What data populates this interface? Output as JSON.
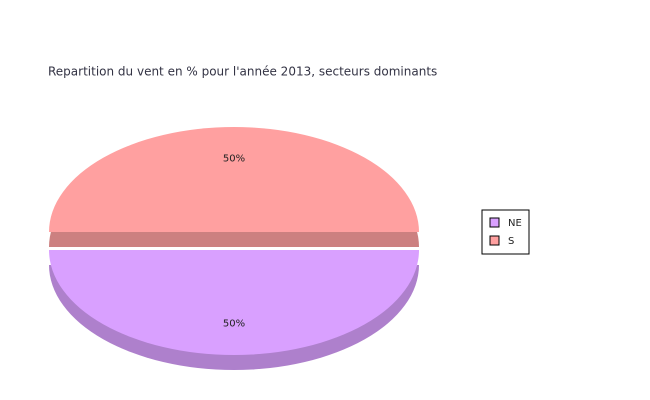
{
  "chart_data": {
    "type": "pie3d",
    "title": "Repartition du vent en % pour l'année 2013, secteurs dominants",
    "categories": [
      "NE",
      "S"
    ],
    "values": [
      50,
      50
    ],
    "value_labels": [
      "50%",
      "50%"
    ],
    "colors": [
      "#d9a0ff",
      "#ffa0a0"
    ],
    "legend": "right"
  }
}
